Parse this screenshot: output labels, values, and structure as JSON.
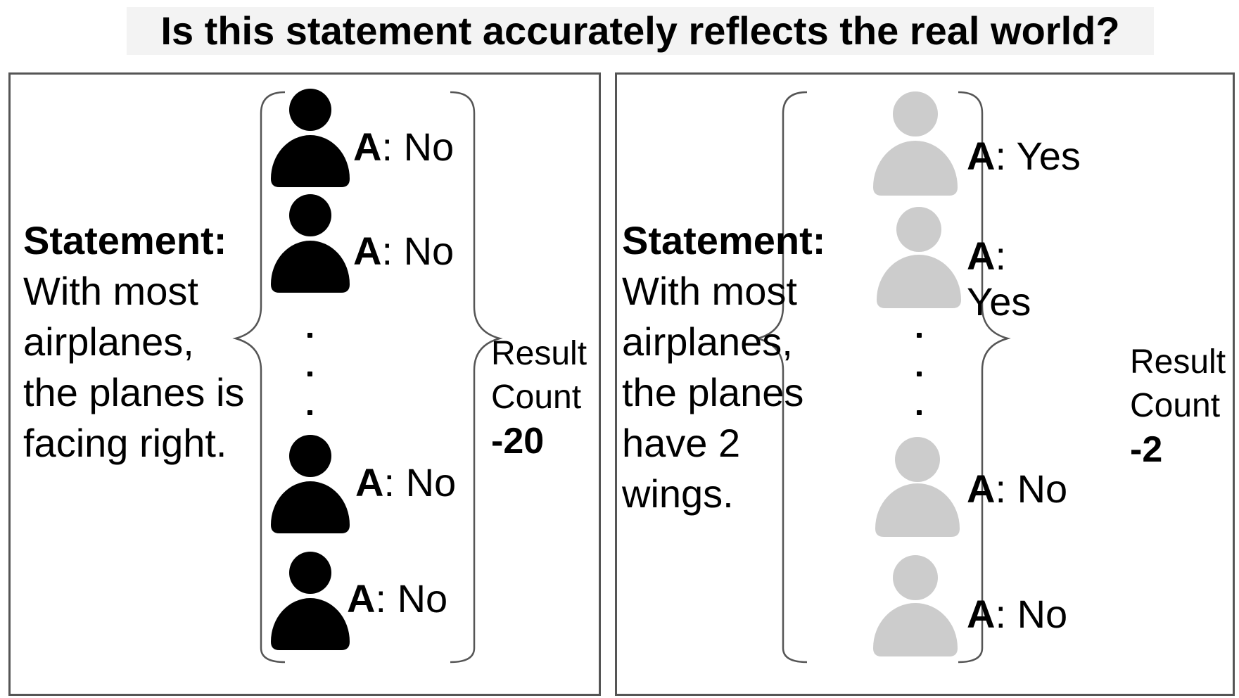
{
  "title": "Is this statement accurately reflects the real world?",
  "colors": {
    "dark_person": "#000000",
    "light_person": "#cccccc",
    "border": "#555555"
  },
  "panels": [
    {
      "statement_label": "Statement:",
      "statement_text": "With most airplanes, the planes is facing right.",
      "answers": [
        {
          "prefix": "A",
          "value": ": No"
        },
        {
          "prefix": "A",
          "value": ": No"
        },
        {
          "prefix": "A",
          "value": ": No"
        },
        {
          "prefix": "A",
          "value": ": No"
        }
      ],
      "result_label": "Result Count",
      "result_value": "-20"
    },
    {
      "statement_label": "Statement:",
      "statement_text": "With most airplanes, the planes have 2 wings.",
      "answers": [
        {
          "prefix": "A",
          "value": ": Yes"
        },
        {
          "prefix": "A",
          "value": ":"
        },
        {
          "prefix": "",
          "value": "Yes"
        },
        {
          "prefix": "A",
          "value": ": No"
        },
        {
          "prefix": "A",
          "value": ": No"
        }
      ],
      "result_label": "Result Count",
      "result_value": "-2"
    }
  ]
}
